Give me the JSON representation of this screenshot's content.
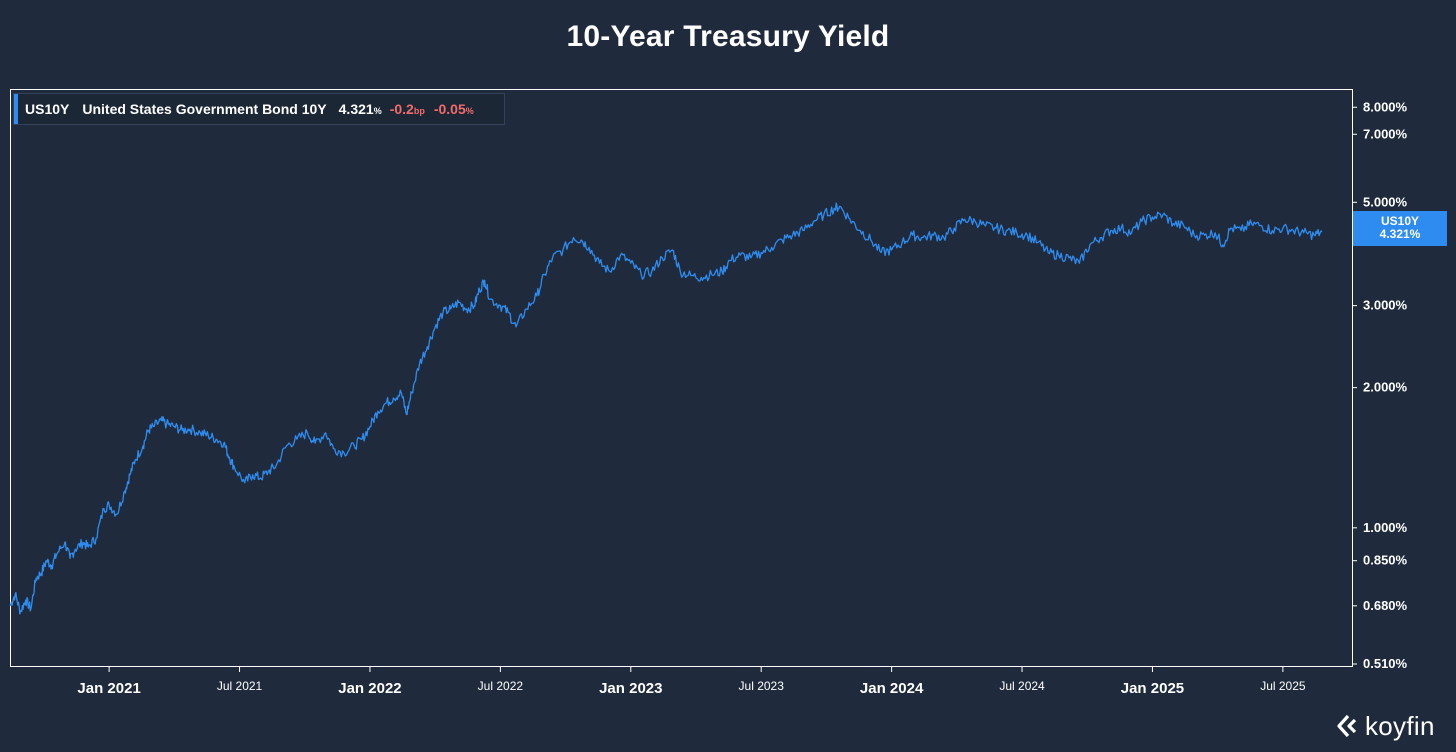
{
  "chart_data": {
    "type": "line",
    "title": "10-Year Treasury Yield",
    "y_scale": "log",
    "ylim": [
      0.51,
      8.5
    ],
    "xlim": [
      2020.62,
      2025.765
    ],
    "y_ticks": [
      {
        "value": 8.0,
        "label": "8.000%"
      },
      {
        "value": 7.0,
        "label": "7.000%"
      },
      {
        "value": 5.0,
        "label": "5.000%"
      },
      {
        "value": 3.0,
        "label": "3.000%"
      },
      {
        "value": 2.0,
        "label": "2.000%"
      },
      {
        "value": 1.0,
        "label": "1.000%"
      },
      {
        "value": 0.85,
        "label": "0.850%"
      },
      {
        "value": 0.68,
        "label": "0.680%"
      },
      {
        "value": 0.51,
        "label": "0.510%"
      }
    ],
    "x_ticks": [
      {
        "t": 2021.0,
        "label": "Jan 2021",
        "major": true
      },
      {
        "t": 2021.5,
        "label": "Jul 2021",
        "major": false
      },
      {
        "t": 2022.0,
        "label": "Jan 2022",
        "major": true
      },
      {
        "t": 2022.5,
        "label": "Jul 2022",
        "major": false
      },
      {
        "t": 2023.0,
        "label": "Jan 2023",
        "major": true
      },
      {
        "t": 2023.5,
        "label": "Jul 2023",
        "major": false
      },
      {
        "t": 2024.0,
        "label": "Jan 2024",
        "major": true
      },
      {
        "t": 2024.5,
        "label": "Jul 2024",
        "major": false
      },
      {
        "t": 2025.0,
        "label": "Jan 2025",
        "major": true
      },
      {
        "t": 2025.5,
        "label": "Jul 2025",
        "major": false
      }
    ],
    "series": [
      {
        "name": "US10Y",
        "color": "#2e8cf0",
        "points": [
          [
            2020.62,
            0.68
          ],
          [
            2020.64,
            0.72
          ],
          [
            2020.66,
            0.66
          ],
          [
            2020.68,
            0.7
          ],
          [
            2020.7,
            0.67
          ],
          [
            2020.72,
            0.78
          ],
          [
            2020.74,
            0.8
          ],
          [
            2020.76,
            0.85
          ],
          [
            2020.78,
            0.83
          ],
          [
            2020.8,
            0.88
          ],
          [
            2020.83,
            0.93
          ],
          [
            2020.85,
            0.86
          ],
          [
            2020.87,
            0.9
          ],
          [
            2020.9,
            0.93
          ],
          [
            2020.92,
            0.91
          ],
          [
            2020.95,
            0.95
          ],
          [
            2020.98,
            1.1
          ],
          [
            2021.0,
            1.12
          ],
          [
            2021.03,
            1.07
          ],
          [
            2021.06,
            1.2
          ],
          [
            2021.08,
            1.3
          ],
          [
            2021.1,
            1.4
          ],
          [
            2021.13,
            1.5
          ],
          [
            2021.15,
            1.62
          ],
          [
            2021.17,
            1.65
          ],
          [
            2021.2,
            1.7
          ],
          [
            2021.22,
            1.67
          ],
          [
            2021.25,
            1.65
          ],
          [
            2021.28,
            1.62
          ],
          [
            2021.31,
            1.63
          ],
          [
            2021.35,
            1.6
          ],
          [
            2021.38,
            1.58
          ],
          [
            2021.41,
            1.55
          ],
          [
            2021.44,
            1.52
          ],
          [
            2021.46,
            1.42
          ],
          [
            2021.48,
            1.35
          ],
          [
            2021.52,
            1.25
          ],
          [
            2021.55,
            1.3
          ],
          [
            2021.58,
            1.28
          ],
          [
            2021.61,
            1.32
          ],
          [
            2021.64,
            1.36
          ],
          [
            2021.68,
            1.5
          ],
          [
            2021.72,
            1.55
          ],
          [
            2021.76,
            1.6
          ],
          [
            2021.79,
            1.52
          ],
          [
            2021.83,
            1.6
          ],
          [
            2021.86,
            1.48
          ],
          [
            2021.9,
            1.45
          ],
          [
            2021.94,
            1.5
          ],
          [
            2021.97,
            1.55
          ],
          [
            2022.0,
            1.65
          ],
          [
            2022.03,
            1.78
          ],
          [
            2022.06,
            1.85
          ],
          [
            2022.09,
            1.9
          ],
          [
            2022.12,
            1.95
          ],
          [
            2022.14,
            1.75
          ],
          [
            2022.16,
            1.95
          ],
          [
            2022.19,
            2.25
          ],
          [
            2022.22,
            2.45
          ],
          [
            2022.25,
            2.7
          ],
          [
            2022.28,
            2.9
          ],
          [
            2022.31,
            2.95
          ],
          [
            2022.34,
            3.05
          ],
          [
            2022.37,
            2.95
          ],
          [
            2022.4,
            3.0
          ],
          [
            2022.42,
            3.25
          ],
          [
            2022.44,
            3.4
          ],
          [
            2022.46,
            3.1
          ],
          [
            2022.5,
            3.0
          ],
          [
            2022.53,
            2.9
          ],
          [
            2022.56,
            2.7
          ],
          [
            2022.6,
            2.95
          ],
          [
            2022.64,
            3.15
          ],
          [
            2022.67,
            3.5
          ],
          [
            2022.7,
            3.8
          ],
          [
            2022.74,
            3.95
          ],
          [
            2022.78,
            4.2
          ],
          [
            2022.81,
            4.15
          ],
          [
            2022.84,
            4.0
          ],
          [
            2022.88,
            3.7
          ],
          [
            2022.92,
            3.55
          ],
          [
            2022.96,
            3.85
          ],
          [
            2023.0,
            3.7
          ],
          [
            2023.04,
            3.5
          ],
          [
            2023.08,
            3.55
          ],
          [
            2023.12,
            3.8
          ],
          [
            2023.16,
            3.95
          ],
          [
            2023.19,
            3.55
          ],
          [
            2023.23,
            3.48
          ],
          [
            2023.27,
            3.45
          ],
          [
            2023.31,
            3.5
          ],
          [
            2023.35,
            3.55
          ],
          [
            2023.38,
            3.75
          ],
          [
            2023.42,
            3.85
          ],
          [
            2023.46,
            3.8
          ],
          [
            2023.5,
            3.9
          ],
          [
            2023.54,
            4.0
          ],
          [
            2023.58,
            4.15
          ],
          [
            2023.62,
            4.25
          ],
          [
            2023.66,
            4.35
          ],
          [
            2023.7,
            4.55
          ],
          [
            2023.74,
            4.7
          ],
          [
            2023.78,
            4.85
          ],
          [
            2023.8,
            4.9
          ],
          [
            2023.84,
            4.6
          ],
          [
            2023.88,
            4.35
          ],
          [
            2023.92,
            4.15
          ],
          [
            2023.96,
            3.9
          ],
          [
            2024.0,
            3.95
          ],
          [
            2024.04,
            4.1
          ],
          [
            2024.08,
            4.25
          ],
          [
            2024.12,
            4.2
          ],
          [
            2024.16,
            4.25
          ],
          [
            2024.2,
            4.2
          ],
          [
            2024.24,
            4.4
          ],
          [
            2024.28,
            4.6
          ],
          [
            2024.32,
            4.55
          ],
          [
            2024.36,
            4.45
          ],
          [
            2024.4,
            4.4
          ],
          [
            2024.44,
            4.35
          ],
          [
            2024.48,
            4.3
          ],
          [
            2024.52,
            4.25
          ],
          [
            2024.56,
            4.1
          ],
          [
            2024.6,
            3.9
          ],
          [
            2024.64,
            3.85
          ],
          [
            2024.68,
            3.8
          ],
          [
            2024.72,
            3.7
          ],
          [
            2024.76,
            4.05
          ],
          [
            2024.8,
            4.2
          ],
          [
            2024.84,
            4.35
          ],
          [
            2024.88,
            4.4
          ],
          [
            2024.92,
            4.3
          ],
          [
            2024.96,
            4.55
          ],
          [
            2025.0,
            4.65
          ],
          [
            2025.04,
            4.7
          ],
          [
            2025.08,
            4.5
          ],
          [
            2025.12,
            4.45
          ],
          [
            2025.16,
            4.25
          ],
          [
            2025.2,
            4.25
          ],
          [
            2025.24,
            4.3
          ],
          [
            2025.27,
            4.05
          ],
          [
            2025.3,
            4.4
          ],
          [
            2025.34,
            4.35
          ],
          [
            2025.38,
            4.5
          ],
          [
            2025.42,
            4.45
          ],
          [
            2025.46,
            4.35
          ],
          [
            2025.5,
            4.4
          ],
          [
            2025.54,
            4.35
          ],
          [
            2025.58,
            4.3
          ],
          [
            2025.62,
            4.25
          ],
          [
            2025.65,
            4.32
          ]
        ]
      }
    ]
  },
  "legend": {
    "ticker": "US10Y",
    "name": "United States Government Bond 10Y",
    "value": "4.321",
    "value_unit": "%",
    "change_bp": "-0.2",
    "bp_unit": "bp",
    "change_pct": "-0.05",
    "pct_unit": "%"
  },
  "last_price_badge": {
    "ticker": "US10Y",
    "value": "4.321%",
    "color": "#2e8cf0"
  },
  "brand": {
    "name": "koyfin"
  },
  "colors": {
    "background": "#1f2b3c",
    "line": "#2e8cf0",
    "negative": "#f26b6b"
  }
}
